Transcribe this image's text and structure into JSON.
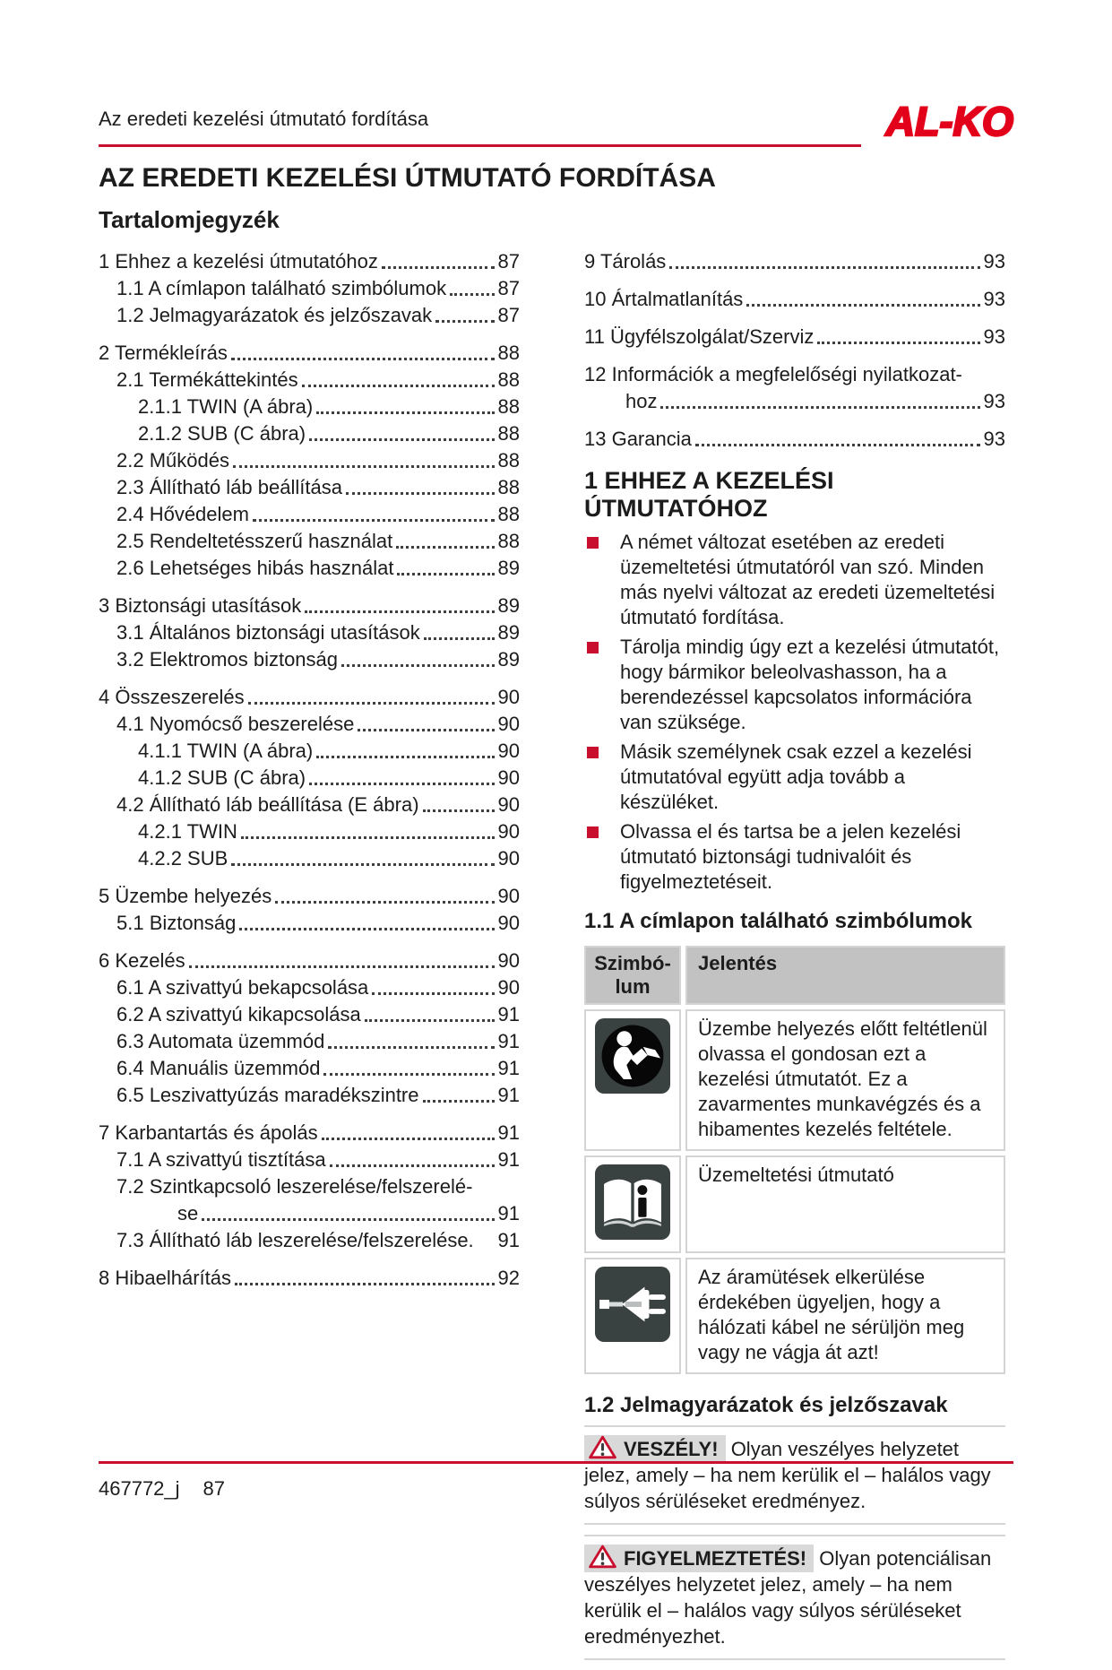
{
  "header": {
    "doc_line": "Az eredeti kezelési útmutató fordítása",
    "logo_text": "AL-KO"
  },
  "titles": {
    "page_title": "AZ EREDETI KEZELÉSI ÚTMUTATÓ FORDÍTÁSA",
    "toc_title": "Tartalomjegyzék"
  },
  "toc": {
    "left": [
      {
        "level": 1,
        "label": "1 Ehhez a kezelési útmutatóhoz",
        "page": "87"
      },
      {
        "level": 2,
        "label": "1.1 A címlapon található szimbólumok",
        "page": "87"
      },
      {
        "level": 2,
        "label": "1.2 Jelmagyarázatok és jelzőszavak",
        "page": "87"
      },
      {
        "level": 1,
        "label": "2 Termékleírás",
        "page": "88"
      },
      {
        "level": 2,
        "label": "2.1 Termékáttekintés",
        "page": "88"
      },
      {
        "level": 3,
        "label": "2.1.1 TWIN (A ábra)",
        "page": "88"
      },
      {
        "level": 3,
        "label": "2.1.2 SUB (C ábra)",
        "page": "88"
      },
      {
        "level": 2,
        "label": "2.2 Működés",
        "page": "88"
      },
      {
        "level": 2,
        "label": "2.3 Állítható láb beállítása",
        "page": "88"
      },
      {
        "level": 2,
        "label": "2.4 Hővédelem",
        "page": "88"
      },
      {
        "level": 2,
        "label": "2.5 Rendeltetésszerű használat",
        "page": "88"
      },
      {
        "level": 2,
        "label": "2.6 Lehetséges hibás használat",
        "page": "89"
      },
      {
        "level": 1,
        "label": "3 Biztonsági utasítások",
        "page": "89"
      },
      {
        "level": 2,
        "label": "3.1 Általános biztonsági utasítások",
        "page": "89"
      },
      {
        "level": 2,
        "label": "3.2 Elektromos biztonság",
        "page": "89"
      },
      {
        "level": 1,
        "label": "4 Összeszerelés",
        "page": "90"
      },
      {
        "level": 2,
        "label": "4.1 Nyomócső beszerelése",
        "page": "90"
      },
      {
        "level": 3,
        "label": "4.1.1 TWIN (A ábra)",
        "page": "90"
      },
      {
        "level": 3,
        "label": "4.1.2 SUB (C ábra)",
        "page": "90"
      },
      {
        "level": 2,
        "label": "4.2 Állítható láb beállítása (E ábra)",
        "page": "90"
      },
      {
        "level": 3,
        "label": "4.2.1 TWIN",
        "page": "90"
      },
      {
        "level": 3,
        "label": "4.2.2 SUB",
        "page": "90"
      },
      {
        "level": 1,
        "label": "5 Üzembe helyezés",
        "page": "90"
      },
      {
        "level": 2,
        "label": "5.1 Biztonság",
        "page": "90"
      },
      {
        "level": 1,
        "label": "6 Kezelés",
        "page": "90"
      },
      {
        "level": 2,
        "label": "6.1 A szivattyú bekapcsolása",
        "page": "90"
      },
      {
        "level": 2,
        "label": "6.2 A szivattyú kikapcsolása",
        "page": "91"
      },
      {
        "level": 2,
        "label": "6.3 Automata üzemmód",
        "page": "91"
      },
      {
        "level": 2,
        "label": "6.4 Manuális üzemmód",
        "page": "91"
      },
      {
        "level": 2,
        "label": "6.5 Leszivattyúzás maradékszintre",
        "page": "91"
      },
      {
        "level": 1,
        "label": "7 Karbantartás és ápolás",
        "page": "91"
      },
      {
        "level": 2,
        "label": "7.1 A szivattyú tisztítása",
        "page": "91"
      },
      {
        "level": 2,
        "lines": [
          "7.2 Szintkapcsoló leszerelése/felszerelé-",
          "se"
        ],
        "page": "91"
      },
      {
        "level": 2,
        "label": "7.3 Állítható láb leszerelése/felszerelése.",
        "page": "91",
        "dots": false
      },
      {
        "level": 1,
        "label": "8 Hibaelhárítás",
        "page": "92"
      }
    ],
    "right": [
      {
        "level": 1,
        "label": "9 Tárolás",
        "page": "93"
      },
      {
        "level": 1,
        "label": "10 Ártalmatlanítás",
        "page": "93"
      },
      {
        "level": 1,
        "label": "11 Ügyfélszolgálat/Szerviz",
        "page": "93"
      },
      {
        "level": 1,
        "lines": [
          "12 Információk a megfelelőségi nyilatkozat-",
          "hoz"
        ],
        "page": "93"
      },
      {
        "level": 1,
        "label": "13 Garancia",
        "page": "93"
      }
    ]
  },
  "sections": {
    "s1": {
      "heading": "1 EHHEZ A KEZELÉSI ÚTMUTATÓHOZ",
      "bullets": [
        "A német változat esetében az eredeti üzemeltetési útmutatóról van szó. Minden más nyelvi változat az eredeti üzemeltetési útmutató fordítása.",
        "Tárolja mindig úgy ezt a kezelési útmutatót, hogy bármikor beleolvashasson, ha a berendezéssel kapcsolatos információra van szüksége.",
        "Másik személynek csak ezzel a kezelési útmutatóval együtt adja tovább a készüléket.",
        "Olvassa el és tartsa be a jelen kezelési útmutató biztonsági tudnivalóit és figyelmeztetéseit."
      ]
    },
    "s11": {
      "heading": "1.1 A címlapon található szimbólumok",
      "table": {
        "header_symbol_lines": [
          "Szimbó-",
          "lum"
        ],
        "header_meaning": "Jelentés",
        "rows": [
          {
            "icon": "read-manual-icon",
            "text": "Üzembe helyezés előtt feltétlenül olvassa el gondosan ezt a kezelési útmutatót. Ez a zavarmentes munkavégzés és a hibamentes kezelés feltétele."
          },
          {
            "icon": "operating-manual-icon",
            "text": "Üzemeltetési útmutató"
          },
          {
            "icon": "power-plug-icon",
            "text": "Az áramütések elkerülése érdekében ügyeljen, hogy a hálózati kábel ne sérüljön meg vagy ne vágja át azt!"
          }
        ]
      }
    },
    "s12": {
      "heading": "1.2 Jelmagyarázatok és jelzőszavak",
      "warnings": [
        {
          "label": "VESZÉLY!",
          "text": "Olyan veszélyes helyzetet jelez, amely – ha nem kerülik el – halálos vagy súlyos sérüléseket eredményez."
        },
        {
          "label": "FIGYELMEZTETÉS!",
          "text": "Olyan potenciálisan veszélyes helyzetet jelez, amely – ha nem kerülik el – halálos vagy súlyos sérüléseket eredményezhet."
        }
      ]
    }
  },
  "footer": {
    "doc_number": "467772_j",
    "page_number": "87"
  },
  "colors": {
    "accent_red": "#c8102e",
    "logo_red": "#e2001a",
    "table_header_bg": "#c2c2c2",
    "signal_label_bg": "#d9d9d9",
    "icon_bg": "#3a4141"
  }
}
